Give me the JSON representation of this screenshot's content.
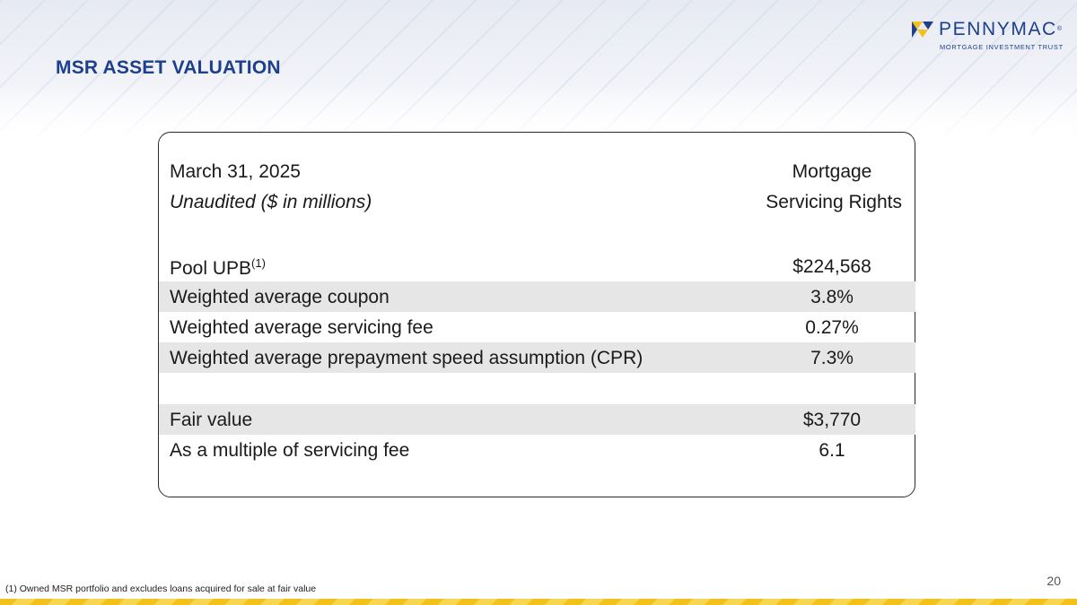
{
  "header": {
    "title": "MSR ASSET VALUATION"
  },
  "logo": {
    "name": "PENNYMAC",
    "trademark": "®",
    "subtitle": "MORTGAGE INVESTMENT TRUST",
    "colors": {
      "yellow": "#f2c21b",
      "navy": "#1d3f8c"
    }
  },
  "table": {
    "header_left_line1": "March 31, 2025",
    "header_left_line2": "Unaudited ($ in millions)",
    "header_right_line1": "Mortgage",
    "header_right_line2": "Servicing Rights",
    "rows": [
      {
        "label": "Pool UPB",
        "sup": "(1)",
        "value": "$224,568"
      },
      {
        "label": "Weighted average coupon",
        "value": "3.8%"
      },
      {
        "label": "Weighted average servicing fee",
        "value": "0.27%"
      },
      {
        "label": "Weighted average prepayment speed assumption (CPR)",
        "value": "7.3%"
      },
      {
        "label": "Fair value",
        "value": "$3,770"
      },
      {
        "label": "As a multiple of servicing fee",
        "value": "6.1"
      }
    ],
    "shade_color": "#e6e6e6"
  },
  "footer": {
    "footnote": "(1) Owned MSR portfolio and excludes loans acquired for sale at fair value",
    "page_number": "20"
  }
}
